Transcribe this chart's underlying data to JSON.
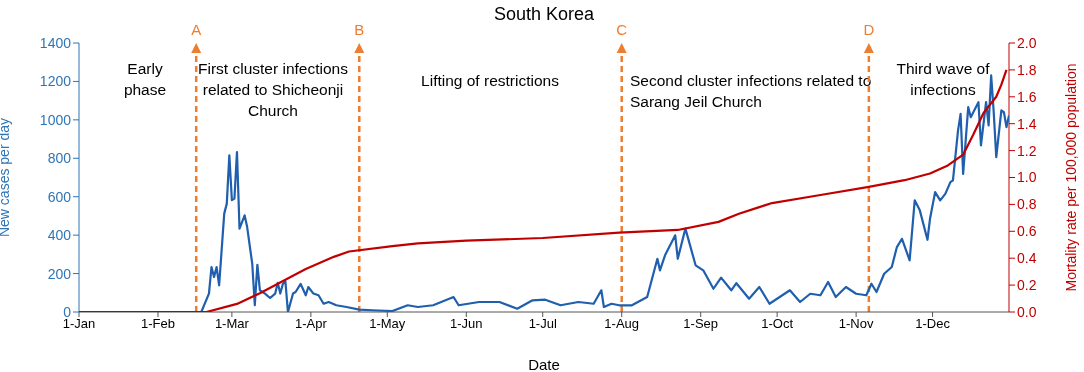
{
  "chart_data": {
    "type": "line",
    "title": "South Korea",
    "xlabel": "Date",
    "ylabel": "New cases per day",
    "y2label": "Mortality rate per 100,000 population",
    "xlim": [
      "--01-01",
      "--12-31"
    ],
    "xticks": [
      {
        "value": "--01-01",
        "label": "1-Jan"
      },
      {
        "value": "--02-01",
        "label": "1-Feb"
      },
      {
        "value": "--03-01",
        "label": "1-Mar"
      },
      {
        "value": "--04-01",
        "label": "1-Apr"
      },
      {
        "value": "--05-01",
        "label": "1-May"
      },
      {
        "value": "--06-01",
        "label": "1-Jun"
      },
      {
        "value": "--07-01",
        "label": "1-Jul"
      },
      {
        "value": "--08-01",
        "label": "1-Aug"
      },
      {
        "value": "--09-01",
        "label": "1-Sep"
      },
      {
        "value": "--10-01",
        "label": "1-Oct"
      },
      {
        "value": "--11-01",
        "label": "1-Nov"
      },
      {
        "value": "--12-01",
        "label": "1-Dec"
      }
    ],
    "ylim": [
      0,
      1400
    ],
    "yticks": [
      0,
      200,
      400,
      600,
      800,
      1000,
      1200,
      1400
    ],
    "y2lim": [
      0,
      2
    ],
    "y2ticks": [
      {
        "value": 0,
        "label": "0.0"
      },
      {
        "value": 0.2,
        "label": "0.2"
      },
      {
        "value": 0.4,
        "label": "0.4"
      },
      {
        "value": 0.6,
        "label": "0.6"
      },
      {
        "value": 0.8,
        "label": "0.8"
      },
      {
        "value": 1,
        "label": "1.0"
      },
      {
        "value": 1.2,
        "label": "1.2"
      },
      {
        "value": 1.4,
        "label": "1.4"
      },
      {
        "value": 1.6,
        "label": "1.6"
      },
      {
        "value": 1.8,
        "label": "1.8"
      },
      {
        "value": 2,
        "label": "2.0"
      }
    ],
    "marker": "none",
    "line_style": "solid",
    "series": [
      {
        "color": "#1f5fad",
        "x": [
          "--01-01",
          "--02-18",
          "--02-21",
          "--02-22",
          "--02-23",
          "--02-24",
          "--02-25",
          "--02-27",
          "--02-28",
          "--02-29",
          "--03-01",
          "--03-02",
          "--03-03",
          "--03-04",
          "--03-06",
          "--03-07",
          "--03-09",
          "--03-10",
          "--03-11",
          "--03-12",
          "--03-14",
          "--03-16",
          "--03-18",
          "--03-19",
          "--03-20",
          "--03-21",
          "--03-22",
          "--03-23",
          "--03-25",
          "--03-26",
          "--03-28",
          "--03-30",
          "--03-31",
          "--04-02",
          "--04-04",
          "--04-06",
          "--04-08",
          "--04-11",
          "--04-15",
          "--04-20",
          "--04-25",
          "--05-03",
          "--05-09",
          "--05-13",
          "--05-19",
          "--05-27",
          "--05-29",
          "--06-06",
          "--06-14",
          "--06-21",
          "--06-27",
          "--07-02",
          "--07-08",
          "--07-15",
          "--07-21",
          "--07-24",
          "--07-25",
          "--07-28",
          "--07-31",
          "--08-05",
          "--08-11",
          "--08-15",
          "--08-16",
          "--08-18",
          "--08-22",
          "--08-23",
          "--08-26",
          "--08-30",
          "--09-02",
          "--09-06",
          "--09-09",
          "--09-13",
          "--09-15",
          "--09-20",
          "--09-24",
          "--09-28",
          "--10-02",
          "--10-06",
          "--10-10",
          "--10-14",
          "--10-18",
          "--10-21",
          "--10-24",
          "--10-28",
          "--11-01",
          "--11-05",
          "--11-07",
          "--11-09",
          "--11-12",
          "--11-15",
          "--11-17",
          "--11-19",
          "--11-22",
          "--11-24",
          "--11-26",
          "--11-29",
          "--11-30",
          "--12-02",
          "--12-04",
          "--12-06",
          "--12-08",
          "--12-09",
          "--12-11",
          "--12-12",
          "--12-13",
          "--12-15",
          "--12-16",
          "--12-19",
          "--12-20",
          "--12-22",
          "--12-23",
          "--12-24",
          "--12-25",
          "--12-26",
          "--12-28",
          "--12-29",
          "--12-30",
          "--12-31"
        ],
        "values": [
          0,
          0,
          96,
          234,
          182,
          234,
          139,
          512,
          564,
          815,
          582,
          590,
          832,
          434,
          503,
          442,
          250,
          35,
          246,
          113,
          96,
          73,
          96,
          152,
          96,
          146,
          160,
          0,
          96,
          104,
          146,
          87,
          130,
          96,
          87,
          43,
          52,
          35,
          26,
          12,
          9,
          5,
          35,
          26,
          35,
          78,
          35,
          52,
          52,
          17,
          61,
          64,
          35,
          52,
          43,
          113,
          26,
          43,
          35,
          35,
          78,
          277,
          217,
          295,
          399,
          277,
          434,
          243,
          217,
          121,
          179,
          113,
          150,
          69,
          130,
          43,
          78,
          113,
          52,
          95,
          87,
          156,
          78,
          130,
          95,
          87,
          147,
          104,
          199,
          234,
          338,
          381,
          269,
          581,
          529,
          376,
          485,
          624,
          581,
          615,
          676,
          685,
          945,
          1031,
          719,
          1066,
          1014,
          1092,
          867,
          1092,
          971,
          1231,
          1040,
          806,
          1049,
          1040,
          962,
          1023
        ]
      },
      {
        "color": "#c00000",
        "axis": "y2",
        "x": [
          "--01-01",
          "--02-20",
          "--03-03",
          "--03-12",
          "--03-22",
          "--03-30",
          "--04-10",
          "--04-16",
          "--05-03",
          "--05-13",
          "--06-01",
          "--07-01",
          "--07-31",
          "--08-23",
          "--09-08",
          "--09-16",
          "--09-24",
          "--09-29",
          "--10-18",
          "--11-06",
          "--11-20",
          "--11-30",
          "--12-07",
          "--12-13",
          "--12-17",
          "--12-21",
          "--12-26",
          "--12-28",
          "--12-30"
        ],
        "values": [
          0,
          0,
          0.06,
          0.14,
          0.24,
          0.32,
          0.41,
          0.45,
          0.49,
          0.51,
          0.53,
          0.55,
          0.59,
          0.61,
          0.67,
          0.73,
          0.78,
          0.81,
          0.87,
          0.93,
          0.98,
          1.03,
          1.09,
          1.17,
          1.32,
          1.48,
          1.6,
          1.69,
          1.8
        ]
      }
    ],
    "ref_lines": [
      {
        "axis": "x",
        "value": "--02-16",
        "label": "A",
        "color": "#ed7d31",
        "line_style": "dashed"
      },
      {
        "axis": "x",
        "value": "--04-20",
        "label": "B",
        "color": "#ed7d31",
        "line_style": "dashed"
      },
      {
        "axis": "x",
        "value": "--08-01",
        "label": "C",
        "color": "#ed7d31",
        "line_style": "dashed"
      },
      {
        "axis": "x",
        "value": "--11-06",
        "label": "D",
        "color": "#ed7d31",
        "line_style": "dashed"
      }
    ],
    "annotations": [
      "Early phase",
      "First cluster infections related to Shicheonji Church",
      "Lifting of restrictions",
      "Second cluster infections related to Sarang Jeil Church",
      "Third wave of infections"
    ]
  }
}
